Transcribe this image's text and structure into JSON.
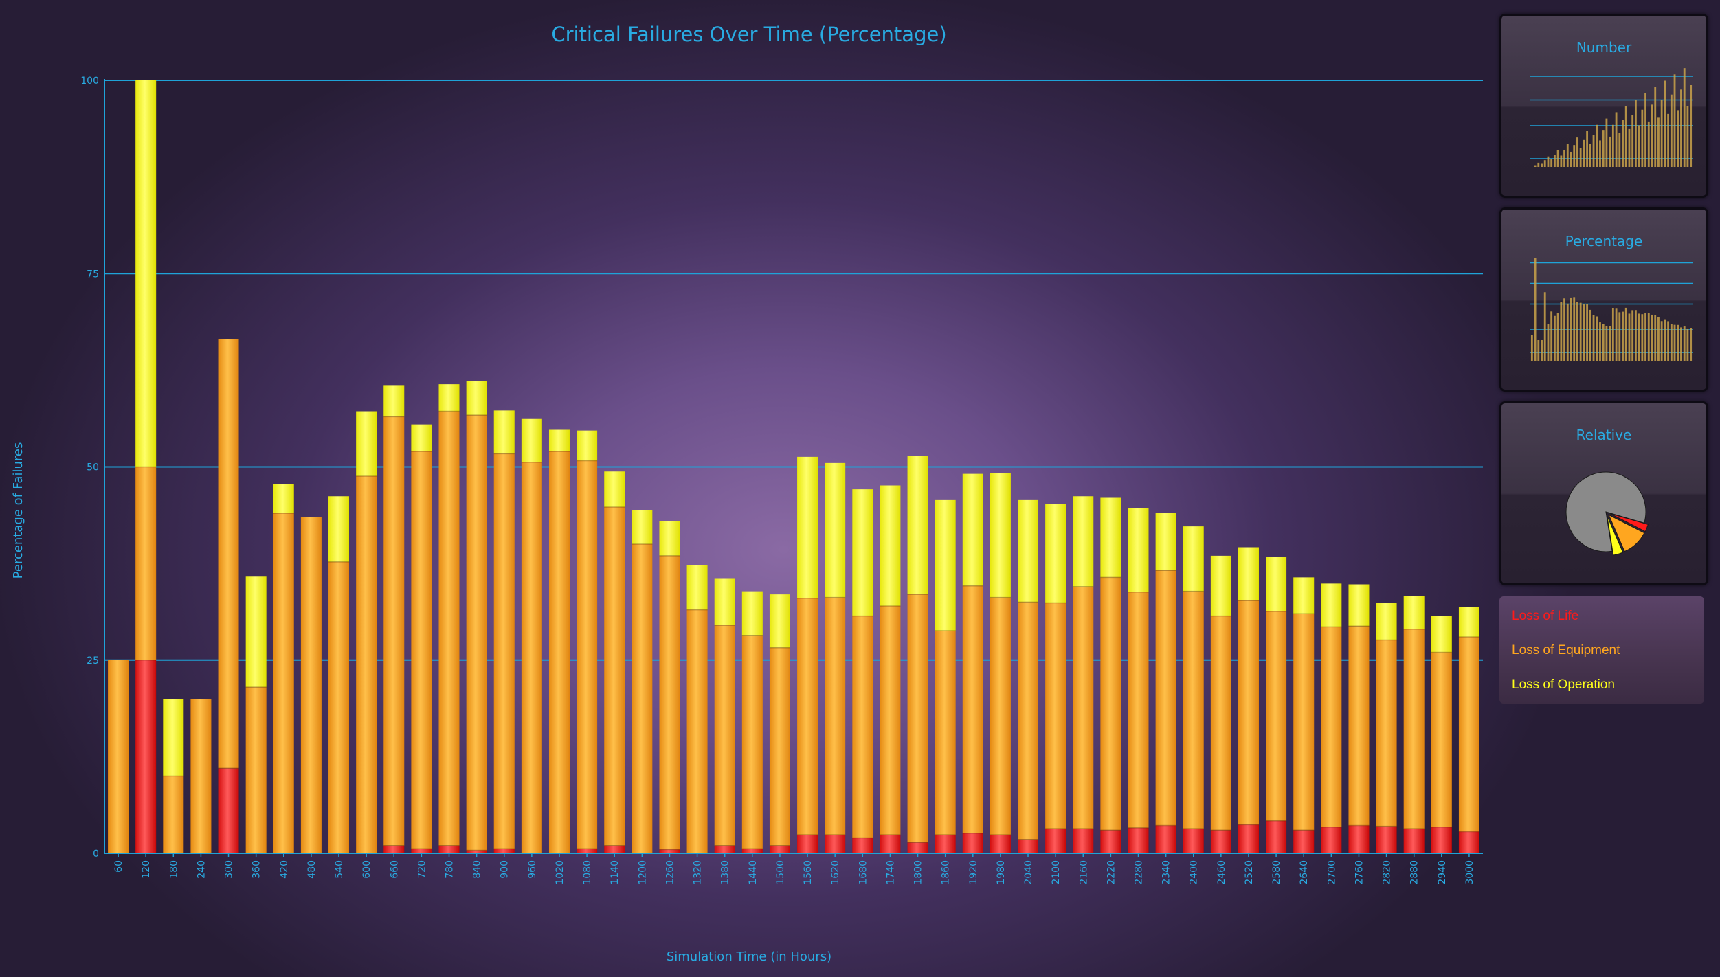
{
  "chart_data": {
    "type": "bar",
    "stacked": true,
    "title": "Critical Failures Over Time (Percentage)",
    "xlabel": "Simulation Time (in Hours)",
    "ylabel": "Percentage of Failures",
    "ylim": [
      0,
      100
    ],
    "yticks": [
      "0",
      "25",
      "50",
      "75",
      "100"
    ],
    "grid": true,
    "categories": [
      "60",
      "120",
      "180",
      "240",
      "300",
      "360",
      "420",
      "480",
      "540",
      "600",
      "660",
      "720",
      "780",
      "840",
      "900",
      "960",
      "1020",
      "1080",
      "1140",
      "1200",
      "1260",
      "1320",
      "1380",
      "1440",
      "1500",
      "1560",
      "1620",
      "1680",
      "1740",
      "1800",
      "1860",
      "1920",
      "1980",
      "2040",
      "2100",
      "2160",
      "2220",
      "2280",
      "2340",
      "2400",
      "2460",
      "2520",
      "2580",
      "2640",
      "2700",
      "2760",
      "2820",
      "2880",
      "2940",
      "3000"
    ],
    "series": [
      {
        "name": "Loss of Life",
        "color": "#ff1a1a",
        "values": [
          0,
          25,
          0,
          0,
          11,
          0,
          0,
          0,
          0,
          0,
          1,
          0.6,
          1,
          0.4,
          0.6,
          0,
          0,
          0.6,
          1,
          0,
          0.5,
          0,
          1,
          0.6,
          1,
          2.4,
          2.4,
          2,
          2.4,
          1.4,
          2.4,
          2.6,
          2.4,
          1.8,
          3.2,
          3.2,
          3,
          3.3,
          3.6,
          3.2,
          3,
          3.7,
          4.2,
          3,
          3.4,
          3.6,
          3.5,
          3.2,
          3.4,
          2.8
        ]
      },
      {
        "name": "Loss of Equipment",
        "color": "#ffa61f",
        "values": [
          25,
          25,
          10,
          20,
          55.5,
          21.5,
          44,
          43.5,
          37.7,
          48.8,
          55.5,
          51.4,
          56.2,
          56.3,
          51.1,
          50.6,
          52,
          50.2,
          43.8,
          40,
          38,
          31.5,
          28.5,
          27.6,
          25.6,
          30.6,
          30.7,
          28.7,
          29.6,
          32.1,
          26.4,
          32,
          30.7,
          30.7,
          29.2,
          31.3,
          32.7,
          30.5,
          33,
          30.7,
          27.7,
          29,
          27.1,
          28,
          25.9,
          25.8,
          24.1,
          25.8,
          22.6,
          25.2
        ]
      },
      {
        "name": "Loss of Operation",
        "color": "#ffff1a",
        "values": [
          0,
          50,
          10,
          0,
          0,
          14.3,
          3.8,
          0,
          8.5,
          8.4,
          4,
          3.5,
          3.5,
          4.4,
          5.6,
          5.6,
          2.8,
          3.9,
          4.6,
          4.4,
          4.5,
          5.8,
          6.1,
          5.7,
          6.9,
          18.3,
          17.4,
          16.4,
          15.6,
          17.9,
          16.9,
          14.5,
          16.1,
          13.2,
          12.8,
          11.7,
          10.3,
          10.9,
          7.4,
          8.4,
          7.8,
          6.9,
          7.1,
          4.7,
          5.6,
          5.4,
          4.8,
          4.3,
          4.7,
          3.9
        ]
      }
    ]
  },
  "panels": [
    {
      "id": "number",
      "title": "Number"
    },
    {
      "id": "percentage",
      "title": "Percentage"
    },
    {
      "id": "relative",
      "title": "Relative"
    }
  ],
  "relative_pie": [
    {
      "name": "Gray",
      "value": 82,
      "color": "#8a8a8a"
    },
    {
      "name": "Loss of Life",
      "value": 3,
      "color": "#ff1a1a"
    },
    {
      "name": "Loss of Equipment",
      "value": 11,
      "color": "#ffa61f"
    },
    {
      "name": "Loss of Operation",
      "value": 4,
      "color": "#ffff1a"
    }
  ],
  "legend": [
    {
      "label": "Loss of Life",
      "color": "#ff1a1a"
    },
    {
      "label": "Loss of Equipment",
      "color": "#ffa61f"
    },
    {
      "label": "Loss of Operation",
      "color": "#ffff1a"
    }
  ]
}
